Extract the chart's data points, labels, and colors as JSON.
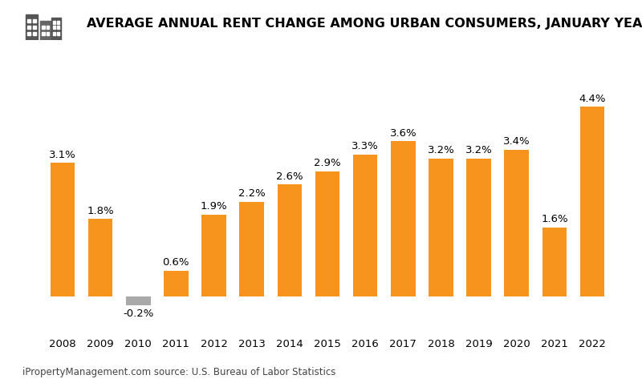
{
  "years": [
    2008,
    2009,
    2010,
    2011,
    2012,
    2013,
    2014,
    2015,
    2016,
    2017,
    2018,
    2019,
    2020,
    2021,
    2022
  ],
  "values": [
    3.1,
    1.8,
    -0.2,
    0.6,
    1.9,
    2.2,
    2.6,
    2.9,
    3.3,
    3.6,
    3.2,
    3.2,
    3.4,
    1.6,
    4.4
  ],
  "bar_color_positive": "#F7941D",
  "bar_color_negative": "#A9A9A9",
  "title": "AVERAGE ANNUAL RENT CHANGE AMONG URBAN CONSUMERS, JANUARY YEAR-OVER-YEAR",
  "source_text": "iPropertyManagement.com source: U.S. Bureau of Labor Statistics",
  "background_color": "#FFFFFF",
  "title_fontsize": 11.5,
  "label_fontsize": 9.5,
  "source_fontsize": 8.5,
  "ylim_min": -0.8,
  "ylim_max": 5.5
}
